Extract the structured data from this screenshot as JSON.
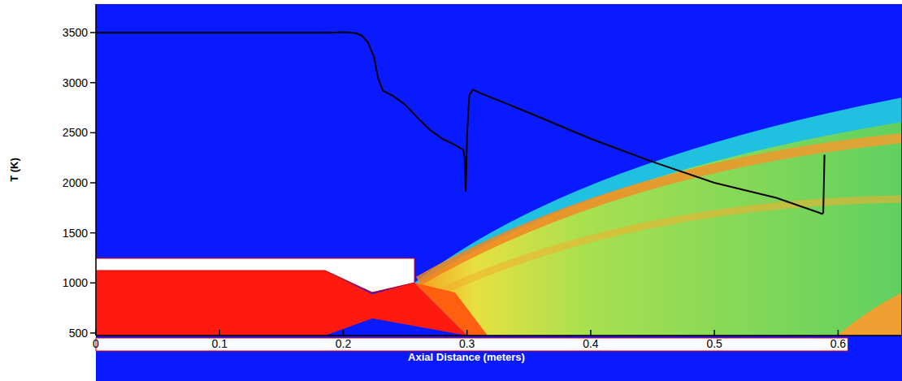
{
  "chart_data": {
    "type": "line",
    "x_label": "Axial Distance (meters)",
    "y_label": "T (K)",
    "color": "#000000",
    "x": [
      0,
      0.19,
      0.2,
      0.21,
      0.215,
      0.22,
      0.225,
      0.228,
      0.232,
      0.24,
      0.25,
      0.26,
      0.27,
      0.28,
      0.29,
      0.297,
      0.298,
      0.299,
      0.3,
      0.301,
      0.302,
      0.305,
      0.31,
      0.33,
      0.35,
      0.4,
      0.45,
      0.5,
      0.55,
      0.585,
      0.587,
      0.588,
      0.589
    ],
    "values": [
      3500,
      3500,
      3505,
      3495,
      3470,
      3400,
      3250,
      3050,
      2920,
      2870,
      2780,
      2650,
      2530,
      2440,
      2380,
      2330,
      2250,
      1920,
      2450,
      2700,
      2880,
      2930,
      2900,
      2800,
      2700,
      2440,
      2210,
      2000,
      1850,
      1700,
      1690,
      1700,
      2280
    ],
    "xlim": [
      0,
      0.651
    ],
    "ylim": [
      475,
      3785
    ],
    "xticks": [
      {
        "value": 0,
        "label": "0"
      },
      0.1,
      0.2,
      0.3,
      0.4,
      0.5,
      0.6
    ],
    "yticks": [
      500,
      1000,
      1500,
      2000,
      2500,
      3000,
      3500
    ],
    "grid": false
  }
}
